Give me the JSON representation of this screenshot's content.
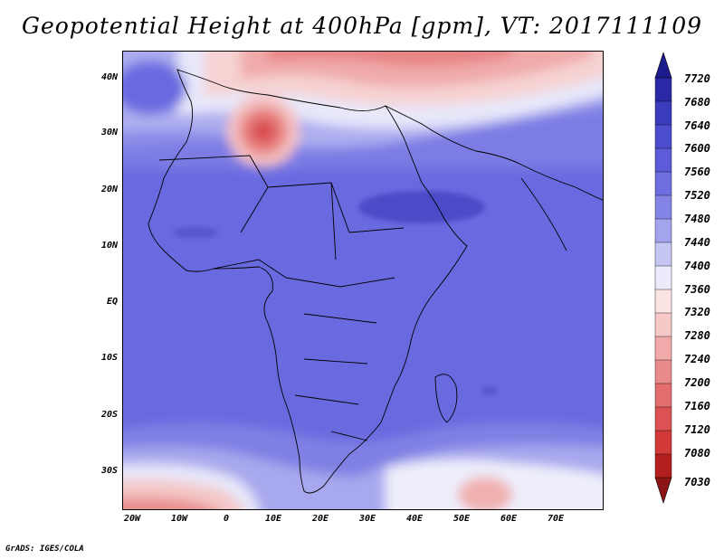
{
  "title": "Geopotential Height at 400hPa [gpm], VT: 2017111109",
  "credit": "GrADS: IGES/COLA",
  "map": {
    "region": "Africa",
    "lat_labels": [
      "40N",
      "30N",
      "20N",
      "10N",
      "EQ",
      "10S",
      "20S",
      "30S"
    ],
    "lon_labels": [
      "20W",
      "10W",
      "0",
      "10E",
      "20E",
      "30E",
      "40E",
      "50E",
      "60E",
      "70E"
    ]
  },
  "colorbar": {
    "labels": [
      "7720",
      "7680",
      "7640",
      "7600",
      "7560",
      "7520",
      "7480",
      "7440",
      "7400",
      "7360",
      "7320",
      "7280",
      "7240",
      "7200",
      "7160",
      "7120",
      "7080",
      "7030"
    ],
    "colors": [
      "#1c1c8c",
      "#2a2aa6",
      "#3b3bbd",
      "#4c4cce",
      "#5c5cd8",
      "#6e6ee0",
      "#8484e6",
      "#a3a3ee",
      "#c6c6f5",
      "#ebebfb",
      "#fbe3e3",
      "#f7c8c8",
      "#f1a9a9",
      "#ea8b8b",
      "#e46e6e",
      "#dc5252",
      "#d23a3a",
      "#b41e1e",
      "#8c1414"
    ]
  }
}
